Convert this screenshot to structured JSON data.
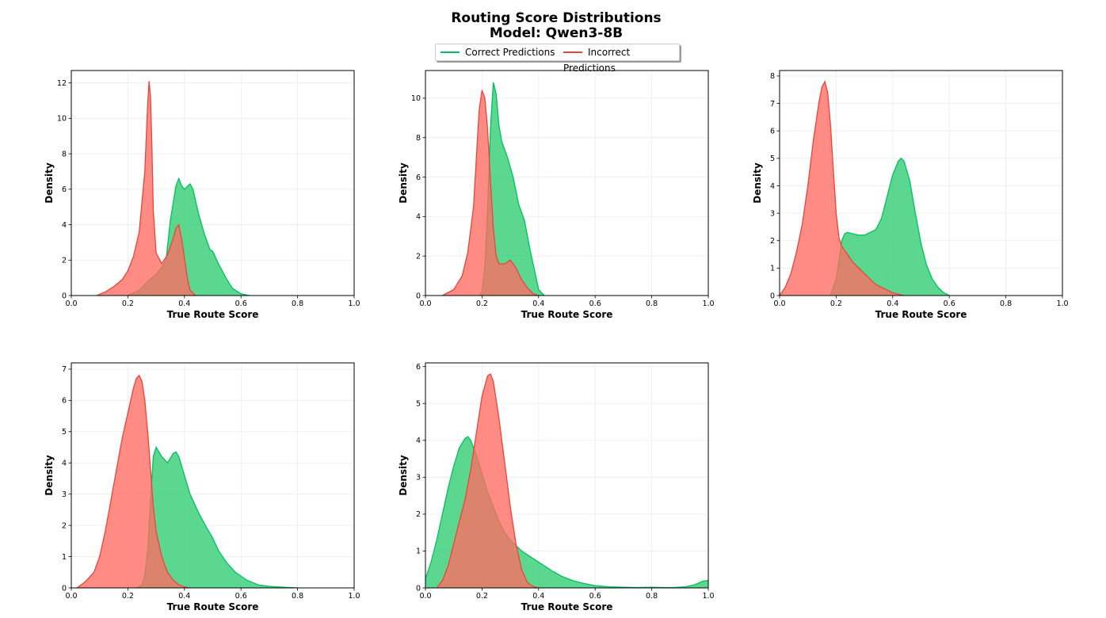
{
  "figure": {
    "title_line1": "Routing Score Distributions",
    "title_line2": "Model: Qwen3-8B"
  },
  "legend": {
    "correct_label": "Correct Predictions",
    "incorrect_label": "Incorrect Predictions"
  },
  "colors": {
    "correct_fill": "#2ecc71",
    "correct_line": "#00c060",
    "incorrect_fill": "#ff6b61",
    "incorrect_line": "#e8453c",
    "grid": "#ececec"
  },
  "chart_data": [
    {
      "type": "area",
      "xlabel": "True Route Score",
      "ylabel": "Density",
      "xlim": [
        0,
        1
      ],
      "ylim": [
        0,
        12.7
      ],
      "xticks": [
        "0.0",
        "0.2",
        "0.4",
        "0.6",
        "0.8",
        "1.0"
      ],
      "yticks": [
        0,
        2,
        4,
        6,
        8,
        10,
        12
      ],
      "grid": true,
      "series": [
        {
          "name": "Correct Predictions",
          "x": [
            0.2,
            0.24,
            0.27,
            0.3,
            0.32,
            0.335,
            0.35,
            0.37,
            0.38,
            0.39,
            0.4,
            0.42,
            0.43,
            0.45,
            0.47,
            0.49,
            0.5,
            0.52,
            0.55,
            0.57,
            0.6,
            0.63
          ],
          "y": [
            0,
            0.3,
            0.8,
            1.2,
            1.6,
            2.0,
            4.2,
            6.2,
            6.6,
            6.2,
            6.0,
            6.3,
            6.0,
            4.6,
            3.5,
            2.6,
            2.5,
            1.8,
            0.9,
            0.4,
            0.1,
            0
          ]
        },
        {
          "name": "Incorrect Predictions",
          "x": [
            0.09,
            0.12,
            0.15,
            0.18,
            0.2,
            0.22,
            0.24,
            0.26,
            0.27,
            0.275,
            0.28,
            0.285,
            0.29,
            0.3,
            0.32,
            0.34,
            0.36,
            0.37,
            0.38,
            0.39,
            0.41,
            0.42,
            0.44
          ],
          "y": [
            0,
            0.2,
            0.5,
            0.9,
            1.4,
            2.2,
            3.6,
            7.0,
            10.8,
            12.1,
            11.2,
            8.5,
            4.8,
            2.4,
            1.8,
            2.3,
            3.2,
            3.8,
            4.0,
            3.2,
            1.0,
            0.3,
            0
          ]
        }
      ]
    },
    {
      "type": "area",
      "xlabel": "True Route Score",
      "ylabel": "Density",
      "xlim": [
        0,
        1
      ],
      "ylim": [
        0,
        11.4
      ],
      "xticks": [
        "0.0",
        "0.2",
        "0.4",
        "0.6",
        "0.8",
        "1.0"
      ],
      "yticks": [
        0,
        2,
        4,
        6,
        8,
        10
      ],
      "grid": true,
      "series": [
        {
          "name": "Correct Predictions",
          "x": [
            0.19,
            0.2,
            0.21,
            0.22,
            0.23,
            0.24,
            0.25,
            0.26,
            0.27,
            0.29,
            0.31,
            0.33,
            0.35,
            0.37,
            0.39,
            0.4,
            0.42
          ],
          "y": [
            0,
            0.2,
            1.5,
            4.5,
            8.5,
            10.8,
            10.2,
            8.6,
            7.8,
            7.0,
            6.0,
            4.6,
            3.8,
            2.3,
            1.0,
            0.3,
            0
          ]
        },
        {
          "name": "Incorrect Predictions",
          "x": [
            0.06,
            0.1,
            0.13,
            0.15,
            0.17,
            0.18,
            0.19,
            0.2,
            0.21,
            0.22,
            0.23,
            0.24,
            0.25,
            0.26,
            0.28,
            0.3,
            0.32,
            0.34,
            0.36,
            0.38,
            0.4
          ],
          "y": [
            0,
            0.3,
            1.0,
            2.2,
            4.5,
            7.0,
            9.4,
            10.4,
            10.0,
            8.4,
            5.8,
            3.4,
            2.0,
            1.6,
            1.6,
            1.8,
            1.4,
            0.8,
            0.4,
            0.1,
            0
          ]
        }
      ]
    },
    {
      "type": "area",
      "xlabel": "True Route Score",
      "ylabel": "Density",
      "xlim": [
        0,
        1
      ],
      "ylim": [
        0,
        8.2
      ],
      "xticks": [
        "0.0",
        "0.2",
        "0.4",
        "0.6",
        "0.8",
        "1.0"
      ],
      "yticks": [
        0,
        1,
        2,
        3,
        4,
        5,
        6,
        7,
        8
      ],
      "grid": true,
      "series": [
        {
          "name": "Correct Predictions",
          "x": [
            0.18,
            0.2,
            0.21,
            0.22,
            0.23,
            0.24,
            0.26,
            0.28,
            0.3,
            0.32,
            0.34,
            0.36,
            0.38,
            0.4,
            0.42,
            0.43,
            0.44,
            0.46,
            0.48,
            0.5,
            0.52,
            0.54,
            0.56,
            0.58,
            0.6
          ],
          "y": [
            0,
            0.6,
            1.3,
            2.0,
            2.25,
            2.3,
            2.25,
            2.2,
            2.2,
            2.3,
            2.4,
            2.8,
            3.6,
            4.4,
            4.9,
            5.0,
            4.9,
            4.2,
            3.0,
            1.9,
            1.1,
            0.6,
            0.3,
            0.1,
            0
          ]
        },
        {
          "name": "Incorrect Predictions",
          "x": [
            0.0,
            0.02,
            0.04,
            0.06,
            0.08,
            0.1,
            0.12,
            0.14,
            0.15,
            0.16,
            0.17,
            0.18,
            0.19,
            0.2,
            0.21,
            0.22,
            0.24,
            0.26,
            0.28,
            0.3,
            0.32,
            0.34,
            0.36,
            0.38,
            0.4,
            0.42,
            0.44
          ],
          "y": [
            0,
            0.3,
            0.8,
            1.6,
            2.6,
            4.0,
            5.7,
            7.1,
            7.6,
            7.8,
            7.4,
            6.2,
            4.6,
            3.0,
            2.1,
            1.8,
            1.5,
            1.2,
            1.0,
            0.8,
            0.6,
            0.4,
            0.3,
            0.2,
            0.1,
            0.05,
            0
          ]
        }
      ]
    },
    {
      "type": "area",
      "xlabel": "True Route Score",
      "ylabel": "Density",
      "xlim": [
        0,
        1
      ],
      "ylim": [
        0,
        7.2
      ],
      "xticks": [
        "0.0",
        "0.2",
        "0.4",
        "0.6",
        "0.8",
        "1.0"
      ],
      "yticks": [
        0,
        1,
        2,
        3,
        4,
        5,
        6,
        7
      ],
      "grid": true,
      "series": [
        {
          "name": "Correct Predictions",
          "x": [
            0.23,
            0.25,
            0.26,
            0.27,
            0.28,
            0.29,
            0.3,
            0.32,
            0.34,
            0.36,
            0.37,
            0.38,
            0.4,
            0.42,
            0.45,
            0.48,
            0.5,
            0.52,
            0.55,
            0.58,
            0.62,
            0.66,
            0.7,
            0.75,
            0.8
          ],
          "y": [
            0,
            0.1,
            0.4,
            1.2,
            2.8,
            4.2,
            4.5,
            4.2,
            4.0,
            4.3,
            4.35,
            4.2,
            3.6,
            3.0,
            2.4,
            1.9,
            1.6,
            1.2,
            0.8,
            0.5,
            0.25,
            0.1,
            0.05,
            0.02,
            0
          ]
        },
        {
          "name": "Incorrect Predictions",
          "x": [
            0.02,
            0.05,
            0.08,
            0.1,
            0.12,
            0.14,
            0.16,
            0.18,
            0.2,
            0.22,
            0.23,
            0.24,
            0.25,
            0.26,
            0.27,
            0.28,
            0.29,
            0.3,
            0.32,
            0.34,
            0.36,
            0.38,
            0.4,
            0.42
          ],
          "y": [
            0,
            0.2,
            0.5,
            1.0,
            1.8,
            2.8,
            3.8,
            4.8,
            5.6,
            6.4,
            6.7,
            6.8,
            6.6,
            6.0,
            5.0,
            3.8,
            2.6,
            1.8,
            1.0,
            0.5,
            0.25,
            0.1,
            0.03,
            0
          ]
        }
      ]
    },
    {
      "type": "area",
      "xlabel": "True Route Score",
      "ylabel": "Density",
      "xlim": [
        0,
        1
      ],
      "ylim": [
        0,
        6.1
      ],
      "xticks": [
        "0.0",
        "0.2",
        "0.4",
        "0.6",
        "0.8",
        "1.0"
      ],
      "yticks": [
        0,
        1,
        2,
        3,
        4,
        5,
        6
      ],
      "grid": true,
      "series": [
        {
          "name": "Correct Predictions",
          "x": [
            0.0,
            0.02,
            0.04,
            0.06,
            0.08,
            0.1,
            0.12,
            0.14,
            0.15,
            0.16,
            0.18,
            0.2,
            0.22,
            0.24,
            0.26,
            0.28,
            0.3,
            0.32,
            0.34,
            0.36,
            0.38,
            0.4,
            0.42,
            0.45,
            0.48,
            0.52,
            0.56,
            0.6,
            0.65,
            0.7,
            0.75,
            0.8,
            0.84,
            0.88,
            0.92,
            0.95,
            0.98,
            1.0
          ],
          "y": [
            0.25,
            0.7,
            1.3,
            2.0,
            2.7,
            3.3,
            3.8,
            4.05,
            4.1,
            4.0,
            3.6,
            3.1,
            2.6,
            2.2,
            1.8,
            1.5,
            1.3,
            1.15,
            1.0,
            0.9,
            0.8,
            0.7,
            0.6,
            0.45,
            0.32,
            0.2,
            0.12,
            0.06,
            0.03,
            0.02,
            0.01,
            0.02,
            0.01,
            0.01,
            0.03,
            0.08,
            0.18,
            0.2
          ]
        },
        {
          "name": "Incorrect Predictions",
          "x": [
            0.04,
            0.06,
            0.08,
            0.1,
            0.12,
            0.14,
            0.16,
            0.18,
            0.2,
            0.22,
            0.23,
            0.24,
            0.26,
            0.28,
            0.3,
            0.32,
            0.34,
            0.36,
            0.38,
            0.4
          ],
          "y": [
            0,
            0.2,
            0.6,
            1.2,
            1.8,
            2.4,
            3.2,
            4.2,
            5.2,
            5.75,
            5.8,
            5.6,
            4.6,
            3.4,
            2.2,
            1.2,
            0.5,
            0.15,
            0.04,
            0
          ]
        }
      ]
    }
  ]
}
